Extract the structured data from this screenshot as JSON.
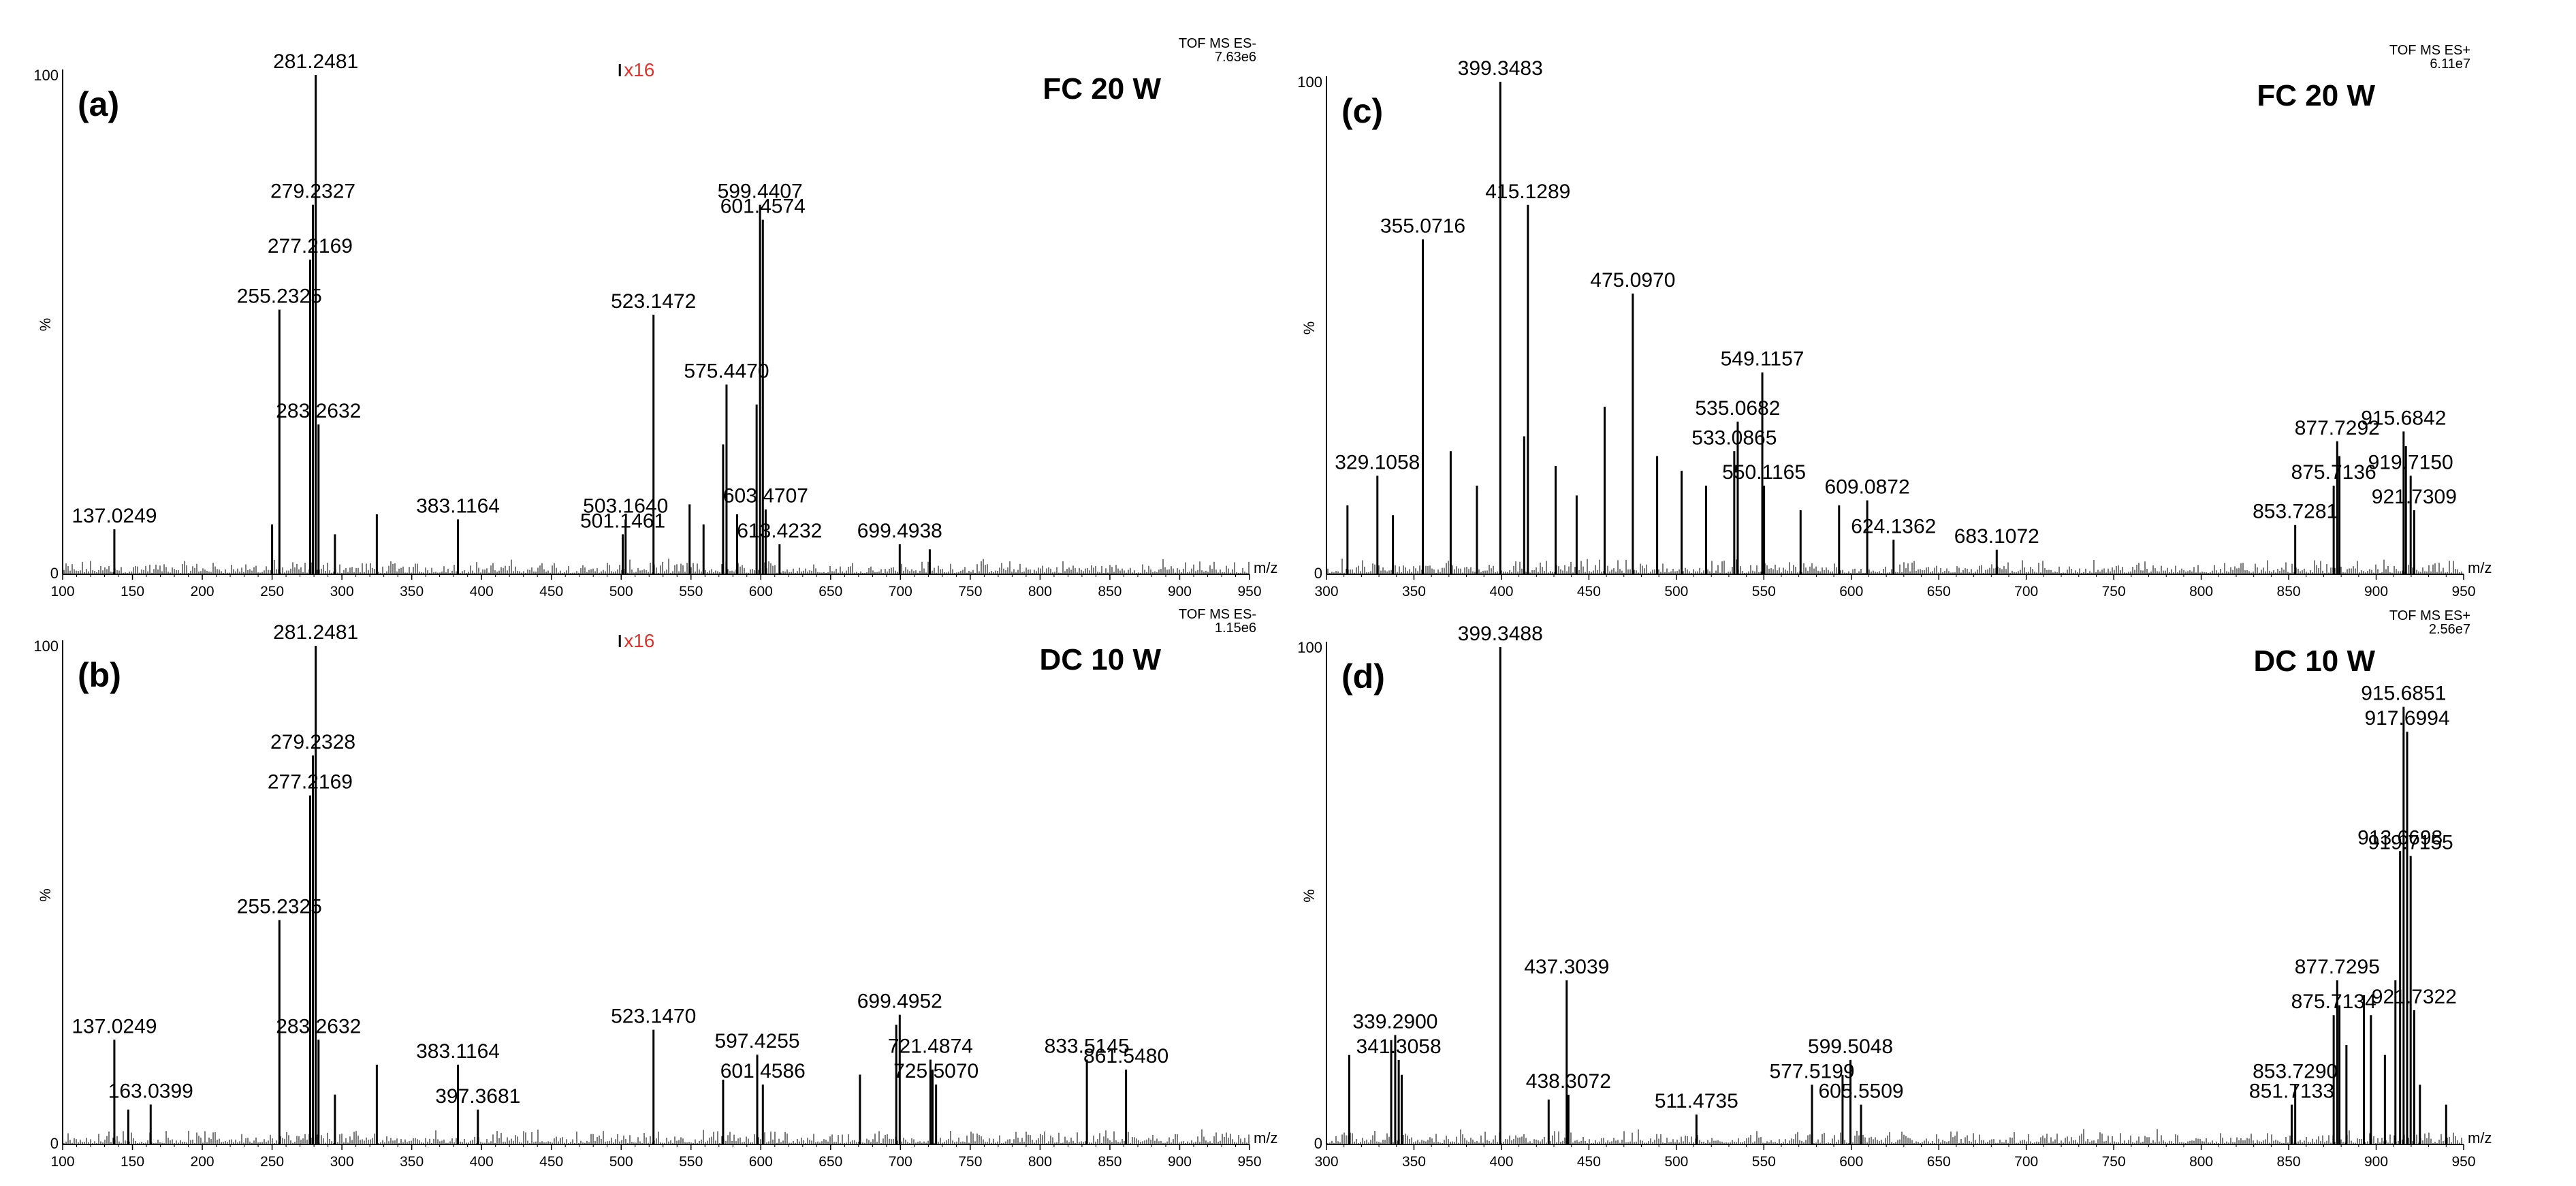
{
  "figure": {
    "spectrum_type": "mass spectrum",
    "x_unit_label": "m/z",
    "y_unit_label": "%",
    "y_max_label": "100",
    "y_min_label": "0",
    "magnification_color": "#e8302a",
    "line_color": "#000000"
  },
  "chart_data": [
    {
      "type": "bar",
      "panel": "(a)",
      "title": "FC 20 W",
      "instrument": "TOF MS ES-",
      "intensity": "7.63e6",
      "magnification": "x16",
      "magnification_from": 500,
      "xlabel": "m/z",
      "ylabel": "%",
      "xlim": [
        100,
        950
      ],
      "ylim": [
        0,
        100
      ],
      "xticks": [
        100,
        150,
        200,
        250,
        300,
        350,
        400,
        450,
        500,
        550,
        600,
        650,
        700,
        750,
        800,
        850,
        900,
        950
      ],
      "labeled_peaks": [
        {
          "mz": 137.0249,
          "label": "137.0249",
          "intensity": 9
        },
        {
          "mz": 255.2325,
          "label": "255.2325",
          "intensity": 53
        },
        {
          "mz": 277.2169,
          "label": "277.2169",
          "intensity": 63
        },
        {
          "mz": 279.2327,
          "label": "279.2327",
          "intensity": 74
        },
        {
          "mz": 281.2481,
          "label": "281.2481",
          "intensity": 100
        },
        {
          "mz": 283.2632,
          "label": "283.2632",
          "intensity": 30
        },
        {
          "mz": 383.1164,
          "label": "383.1164",
          "intensity": 11
        },
        {
          "mz": 501.1461,
          "label": "501.1461",
          "intensity": 8
        },
        {
          "mz": 503.164,
          "label": "503.1640",
          "intensity": 11
        },
        {
          "mz": 523.1472,
          "label": "523.1472",
          "intensity": 52
        },
        {
          "mz": 575.447,
          "label": "575.4470",
          "intensity": 38
        },
        {
          "mz": 599.4407,
          "label": "599.4407",
          "intensity": 74
        },
        {
          "mz": 601.4574,
          "label": "601.4574",
          "intensity": 71
        },
        {
          "mz": 603.4707,
          "label": "603.4707",
          "intensity": 13
        },
        {
          "mz": 613.4232,
          "label": "613.4232",
          "intensity": 6
        },
        {
          "mz": 699.4938,
          "label": "699.4938",
          "intensity": 6
        }
      ],
      "minor_peaks": [
        {
          "mz": 325,
          "intensity": 12
        },
        {
          "mz": 295,
          "intensity": 8
        },
        {
          "mz": 250,
          "intensity": 10
        },
        {
          "mz": 573,
          "intensity": 26
        },
        {
          "mz": 597,
          "intensity": 34
        },
        {
          "mz": 549,
          "intensity": 14
        },
        {
          "mz": 559,
          "intensity": 10
        },
        {
          "mz": 583,
          "intensity": 12
        },
        {
          "mz": 721,
          "intensity": 5
        }
      ]
    },
    {
      "type": "bar",
      "panel": "(b)",
      "title": "DC 10 W",
      "instrument": "TOF MS ES-",
      "intensity": "1.15e6",
      "magnification": "x16",
      "magnification_from": 500,
      "xlabel": "m/z",
      "ylabel": "%",
      "xlim": [
        100,
        950
      ],
      "ylim": [
        0,
        100
      ],
      "xticks": [
        100,
        150,
        200,
        250,
        300,
        350,
        400,
        450,
        500,
        550,
        600,
        650,
        700,
        750,
        800,
        850,
        900,
        950
      ],
      "labeled_peaks": [
        {
          "mz": 137.0249,
          "label": "137.0249",
          "intensity": 21
        },
        {
          "mz": 163.0399,
          "label": "163.0399",
          "intensity": 8
        },
        {
          "mz": 255.2325,
          "label": "255.2325",
          "intensity": 45
        },
        {
          "mz": 277.2169,
          "label": "277.2169",
          "intensity": 70
        },
        {
          "mz": 279.2328,
          "label": "279.2328",
          "intensity": 78
        },
        {
          "mz": 281.2481,
          "label": "281.2481",
          "intensity": 100
        },
        {
          "mz": 283.2632,
          "label": "283.2632",
          "intensity": 21
        },
        {
          "mz": 383.1164,
          "label": "383.1164",
          "intensity": 16
        },
        {
          "mz": 397.3681,
          "label": "397.3681",
          "intensity": 7
        },
        {
          "mz": 523.147,
          "label": "523.1470",
          "intensity": 23
        },
        {
          "mz": 597.4255,
          "label": "597.4255",
          "intensity": 18
        },
        {
          "mz": 601.4586,
          "label": "601.4586",
          "intensity": 12
        },
        {
          "mz": 699.4952,
          "label": "699.4952",
          "intensity": 26
        },
        {
          "mz": 721.4874,
          "label": "721.4874",
          "intensity": 17
        },
        {
          "mz": 725.507,
          "label": "725.5070",
          "intensity": 12
        },
        {
          "mz": 833.5145,
          "label": "833.5145",
          "intensity": 17
        },
        {
          "mz": 861.548,
          "label": "861.5480",
          "intensity": 15
        }
      ],
      "minor_peaks": [
        {
          "mz": 325,
          "intensity": 16
        },
        {
          "mz": 295,
          "intensity": 10
        },
        {
          "mz": 573,
          "intensity": 13
        },
        {
          "mz": 671,
          "intensity": 14
        },
        {
          "mz": 697,
          "intensity": 24
        },
        {
          "mz": 723,
          "intensity": 15
        },
        {
          "mz": 147,
          "intensity": 7
        }
      ]
    },
    {
      "type": "bar",
      "panel": "(c)",
      "title": "FC 20 W",
      "instrument": "TOF MS ES+",
      "intensity": "6.11e7",
      "xlabel": "m/z",
      "ylabel": "%",
      "xlim": [
        300,
        950
      ],
      "ylim": [
        0,
        100
      ],
      "xticks": [
        300,
        350,
        400,
        450,
        500,
        550,
        600,
        650,
        700,
        750,
        800,
        850,
        900,
        950
      ],
      "labeled_peaks": [
        {
          "mz": 329.1058,
          "label": "329.1058",
          "intensity": 20
        },
        {
          "mz": 355.0716,
          "label": "355.0716",
          "intensity": 68
        },
        {
          "mz": 399.3483,
          "label": "399.3483",
          "intensity": 100
        },
        {
          "mz": 415.1289,
          "label": "415.1289",
          "intensity": 75
        },
        {
          "mz": 475.097,
          "label": "475.0970",
          "intensity": 57
        },
        {
          "mz": 533.0865,
          "label": "533.0865",
          "intensity": 25
        },
        {
          "mz": 535.0682,
          "label": "535.0682",
          "intensity": 31
        },
        {
          "mz": 549.1157,
          "label": "549.1157",
          "intensity": 41
        },
        {
          "mz": 550.1165,
          "label": "550.1165",
          "intensity": 18
        },
        {
          "mz": 609.0872,
          "label": "609.0872",
          "intensity": 15
        },
        {
          "mz": 624.1362,
          "label": "624.1362",
          "intensity": 7
        },
        {
          "mz": 683.1072,
          "label": "683.1072",
          "intensity": 5
        },
        {
          "mz": 853.7281,
          "label": "853.7281",
          "intensity": 10
        },
        {
          "mz": 875.7136,
          "label": "875.7136",
          "intensity": 18
        },
        {
          "mz": 877.7292,
          "label": "877.7292",
          "intensity": 27
        },
        {
          "mz": 915.6842,
          "label": "915.6842",
          "intensity": 29
        },
        {
          "mz": 919.715,
          "label": "919.7150",
          "intensity": 20
        },
        {
          "mz": 921.7309,
          "label": "921.7309",
          "intensity": 13
        }
      ],
      "minor_peaks": [
        {
          "mz": 312,
          "intensity": 14
        },
        {
          "mz": 338,
          "intensity": 12
        },
        {
          "mz": 371,
          "intensity": 25
        },
        {
          "mz": 386,
          "intensity": 18
        },
        {
          "mz": 413,
          "intensity": 28
        },
        {
          "mz": 431,
          "intensity": 22
        },
        {
          "mz": 443,
          "intensity": 16
        },
        {
          "mz": 459,
          "intensity": 34
        },
        {
          "mz": 489,
          "intensity": 24
        },
        {
          "mz": 503,
          "intensity": 21
        },
        {
          "mz": 517,
          "intensity": 18
        },
        {
          "mz": 571,
          "intensity": 13
        },
        {
          "mz": 593,
          "intensity": 14
        },
        {
          "mz": 879,
          "intensity": 24
        },
        {
          "mz": 917,
          "intensity": 26
        }
      ]
    },
    {
      "type": "bar",
      "panel": "(d)",
      "title": "DC 10 W",
      "instrument": "TOF MS ES+",
      "intensity": "2.56e7",
      "xlabel": "m/z",
      "ylabel": "%",
      "xlim": [
        300,
        950
      ],
      "ylim": [
        0,
        100
      ],
      "xticks": [
        300,
        350,
        400,
        450,
        500,
        550,
        600,
        650,
        700,
        750,
        800,
        850,
        900,
        950
      ],
      "labeled_peaks": [
        {
          "mz": 339.29,
          "label": "339.2900",
          "intensity": 22
        },
        {
          "mz": 341.3058,
          "label": "341.3058",
          "intensity": 17
        },
        {
          "mz": 399.3488,
          "label": "399.3488",
          "intensity": 100
        },
        {
          "mz": 437.3039,
          "label": "437.3039",
          "intensity": 33
        },
        {
          "mz": 438.3072,
          "label": "438.3072",
          "intensity": 10
        },
        {
          "mz": 511.4735,
          "label": "511.4735",
          "intensity": 6
        },
        {
          "mz": 577.5199,
          "label": "577.5199",
          "intensity": 12
        },
        {
          "mz": 599.5048,
          "label": "599.5048",
          "intensity": 17
        },
        {
          "mz": 605.5509,
          "label": "605.5509",
          "intensity": 8
        },
        {
          "mz": 851.7133,
          "label": "851.7133",
          "intensity": 8
        },
        {
          "mz": 853.729,
          "label": "853.7290",
          "intensity": 12
        },
        {
          "mz": 875.7134,
          "label": "875.7134",
          "intensity": 26
        },
        {
          "mz": 877.7295,
          "label": "877.7295",
          "intensity": 33
        },
        {
          "mz": 913.6698,
          "label": "913.6698",
          "intensity": 59
        },
        {
          "mz": 915.6851,
          "label": "915.6851",
          "intensity": 88
        },
        {
          "mz": 917.6994,
          "label": "917.6994",
          "intensity": 83
        },
        {
          "mz": 919.7155,
          "label": "919.7155",
          "intensity": 58
        },
        {
          "mz": 921.7322,
          "label": "921.7322",
          "intensity": 27
        }
      ],
      "minor_peaks": [
        {
          "mz": 313,
          "intensity": 18
        },
        {
          "mz": 337,
          "intensity": 21
        },
        {
          "mz": 343,
          "intensity": 14
        },
        {
          "mz": 427,
          "intensity": 9
        },
        {
          "mz": 595,
          "intensity": 14
        },
        {
          "mz": 879,
          "intensity": 28
        },
        {
          "mz": 883,
          "intensity": 20
        },
        {
          "mz": 893,
          "intensity": 30
        },
        {
          "mz": 897,
          "intensity": 26
        },
        {
          "mz": 905,
          "intensity": 18
        },
        {
          "mz": 911,
          "intensity": 33
        },
        {
          "mz": 925,
          "intensity": 12
        },
        {
          "mz": 940,
          "intensity": 8
        }
      ]
    }
  ]
}
